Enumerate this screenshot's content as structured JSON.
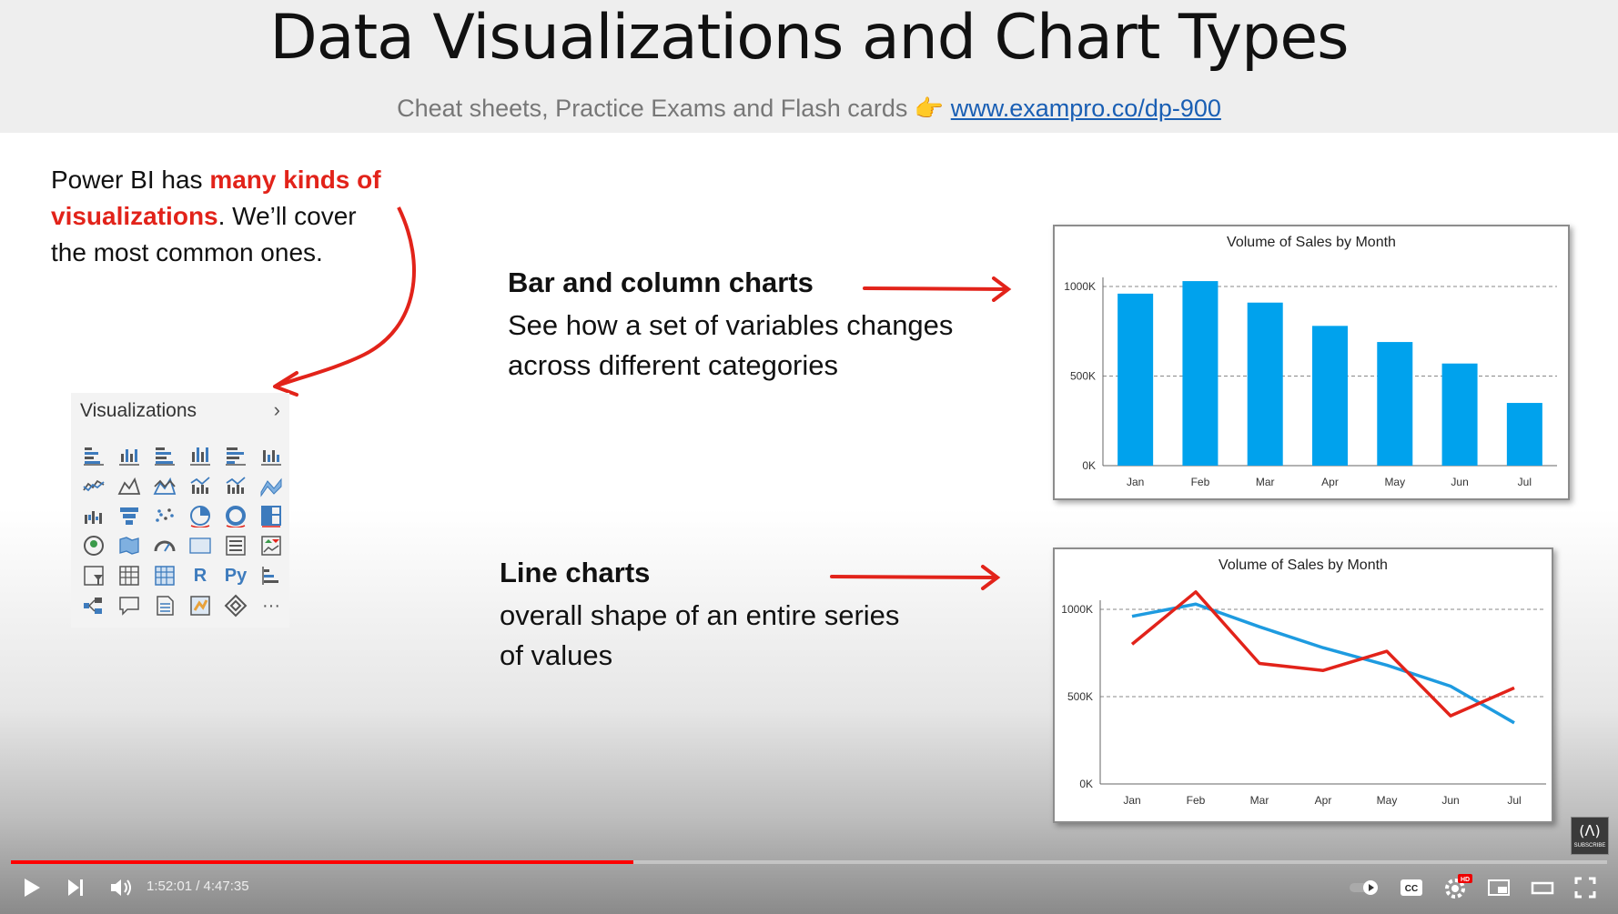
{
  "slide": {
    "title": "Data Visualizations and Chart Types",
    "subtitle_text": "Cheat sheets, Practice Exams and Flash cards",
    "subtitle_emoji": "👉",
    "subtitle_link": "www.exampro.co/dp-900",
    "intro": {
      "part1": "Power BI has ",
      "highlight1": "many kinds of",
      "highlight2": "visualizations",
      "part2": ". We’ll cover",
      "part3": "the most common ones."
    },
    "bar_section": {
      "title": "Bar and column charts",
      "desc_line1": "See how a set of variables changes",
      "desc_line2": "across different categories"
    },
    "line_section": {
      "title": "Line charts",
      "desc_line1": "overall shape of an entire series",
      "desc_line2": "of values"
    },
    "viz_pane": {
      "title": "Visualizations",
      "chevron": "›",
      "text_icons": [
        "R",
        "Py",
        "···"
      ]
    },
    "accent_red": "#e2231a",
    "bar_blue": "#00a2ed"
  },
  "chart_data": [
    {
      "type": "bar",
      "title": "Volume of Sales by Month",
      "categories": [
        "Jan",
        "Feb",
        "Mar",
        "Apr",
        "May",
        "Jun",
        "Jul"
      ],
      "values": [
        960,
        1030,
        910,
        780,
        690,
        570,
        350
      ],
      "ytick_labels": [
        "0K",
        "500K",
        "1000K"
      ],
      "ytick_values": [
        0,
        500,
        1000
      ],
      "ylim": [
        0,
        1000
      ],
      "grid": "dashed horizontal",
      "color": "#00a2ed"
    },
    {
      "type": "line",
      "title": "Volume of Sales by Month",
      "categories": [
        "Jan",
        "Feb",
        "Mar",
        "Apr",
        "May",
        "Jun",
        "Jul"
      ],
      "series": [
        {
          "values": [
            960,
            1030,
            900,
            780,
            680,
            560,
            350
          ],
          "color": "#1e9be0"
        },
        {
          "values": [
            800,
            1100,
            690,
            650,
            760,
            390,
            550
          ],
          "color": "#e2231a"
        }
      ],
      "ytick_labels": [
        "0K",
        "500K",
        "1000K"
      ],
      "ytick_values": [
        0,
        500,
        1000
      ],
      "ylim": [
        0,
        1000
      ],
      "grid": "dashed horizontal"
    }
  ],
  "player": {
    "time": "1:52:01 / 4:47:35",
    "progress": 0.39,
    "buttons": [
      "play",
      "next",
      "volume",
      "autoplay",
      "captions",
      "settings",
      "miniplayer",
      "theater",
      "fullscreen"
    ],
    "hd_badge": "HD",
    "subscribe_label": "SUBSCRIBE"
  }
}
